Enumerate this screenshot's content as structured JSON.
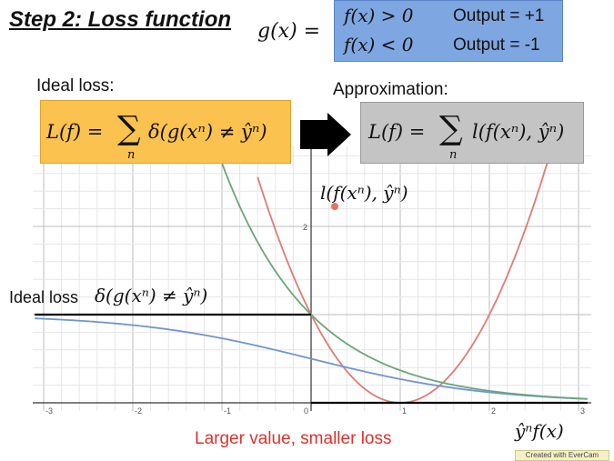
{
  "title": "Step 2: Loss function",
  "g_definition": "g(x) =",
  "cases": [
    {
      "condition": "f(x) > 0",
      "output": "Output = +1"
    },
    {
      "condition": "f(x) < 0",
      "output": "Output = -1"
    }
  ],
  "ideal_label": "Ideal loss:",
  "approx_label": "Approximation:",
  "ideal_formula": {
    "lhs": "L(f) =",
    "sum": "∑",
    "sub": "n",
    "rhs": "δ(g(xⁿ) ≠ ŷⁿ)"
  },
  "approx_formula": {
    "lhs": "L(f) =",
    "sum": "∑",
    "sub": "n",
    "rhs": "l(f(xⁿ), ŷⁿ)"
  },
  "loss_label": "l(f(xⁿ), ŷⁿ)",
  "ideal_loss_text": "Ideal loss",
  "ideal_loss_math": "δ(g(xⁿ) ≠ ŷⁿ)",
  "caption": "Larger value, smaller loss",
  "axis_label": "ŷⁿf(x)",
  "watermark": "Created with EverCam",
  "plot": {
    "x_ticks": [
      "-3",
      "-2",
      "-1",
      "0",
      "1",
      "2",
      "3"
    ],
    "y_tick": "2",
    "colors": {
      "square": "#e07b73",
      "sigmoid": "#6f95d1",
      "exp": "#6aa67b",
      "ideal": "#000000"
    }
  }
}
